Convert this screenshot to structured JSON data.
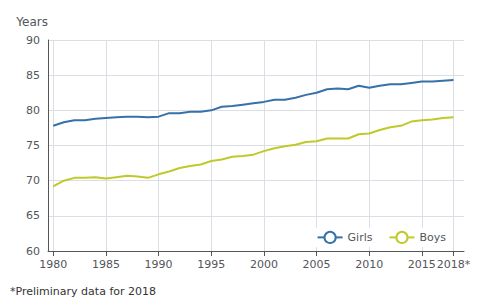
{
  "chart_data": {
    "type": "line",
    "ylabel": "Years",
    "footnote": "*Preliminary data for 2018",
    "x": [
      1980,
      1981,
      1982,
      1983,
      1984,
      1985,
      1986,
      1987,
      1988,
      1989,
      1990,
      1991,
      1992,
      1993,
      1994,
      1995,
      1996,
      1997,
      1998,
      1999,
      2000,
      2001,
      2002,
      2003,
      2004,
      2005,
      2006,
      2007,
      2008,
      2009,
      2010,
      2011,
      2012,
      2013,
      2014,
      2015,
      2016,
      2017,
      2018
    ],
    "series": [
      {
        "name": "Girls",
        "color": "#3671A8",
        "values": [
          77.8,
          78.3,
          78.6,
          78.6,
          78.8,
          78.9,
          79.0,
          79.1,
          79.1,
          79.0,
          79.1,
          79.6,
          79.6,
          79.8,
          79.8,
          80.0,
          80.5,
          80.6,
          80.8,
          81.0,
          81.2,
          81.5,
          81.5,
          81.8,
          82.2,
          82.5,
          83.0,
          83.1,
          83.0,
          83.5,
          83.2,
          83.5,
          83.7,
          83.7,
          83.9,
          84.1,
          84.1,
          84.2,
          84.3
        ]
      },
      {
        "name": "Boys",
        "color": "#BFCA2A",
        "values": [
          69.2,
          70.0,
          70.4,
          70.4,
          70.5,
          70.3,
          70.5,
          70.7,
          70.6,
          70.4,
          70.9,
          71.3,
          71.8,
          72.1,
          72.3,
          72.8,
          73.0,
          73.4,
          73.5,
          73.7,
          74.2,
          74.6,
          74.9,
          75.1,
          75.5,
          75.6,
          76.0,
          76.0,
          76.0,
          76.6,
          76.7,
          77.2,
          77.6,
          77.8,
          78.4,
          78.6,
          78.7,
          78.9,
          79.0
        ]
      }
    ],
    "xlim": [
      1979.5,
      2019.0
    ],
    "xticks": [
      1980,
      1985,
      1990,
      1995,
      2000,
      2005,
      2010,
      2015,
      {
        "value": 2018,
        "label": "2018*"
      }
    ],
    "ylim": [
      60,
      90
    ],
    "yticks": [
      60,
      65,
      70,
      75,
      80,
      85,
      90
    ],
    "grid": true,
    "legend": "lower right"
  }
}
